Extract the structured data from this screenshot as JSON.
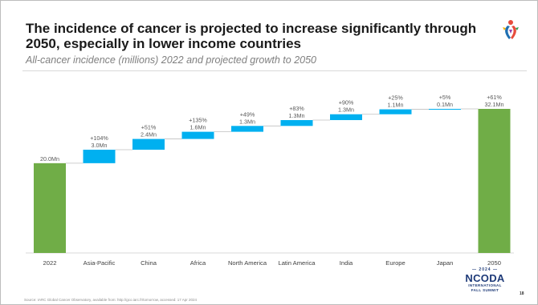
{
  "slide": {
    "title": "The incidence of cancer is projected to increase significantly through 2050, especially in lower income countries",
    "subtitle": "All-cancer incidence (millions) 2022 and projected growth to 2050",
    "source": "Source: IARC Global Cancer Observatory, available from: http://gco.iarc.fr/tomorrow, accessed: 17 Apr 2024",
    "page_number": "18",
    "footer_logo": {
      "year": "— 2024 —",
      "name": "NCODA",
      "line1": "INTERNATIONAL",
      "line2": "FALL SUMMIT"
    },
    "logo_icon": "ribbon-logo-icon"
  },
  "colors": {
    "total_bar": "#70ad47",
    "increase_bar": "#00b0f0",
    "connector": "#bfbfbf",
    "label_text": "#595959",
    "axis": "#d9d9d9"
  },
  "chart_data": {
    "type": "bar",
    "subtype": "waterfall",
    "categories": [
      "2022",
      "Asia-Pacific",
      "China",
      "Africa",
      "North America",
      "Latin America",
      "India",
      "Europe",
      "Japan",
      "2050"
    ],
    "values": [
      20.0,
      3.0,
      2.4,
      1.6,
      1.3,
      1.3,
      1.3,
      1.1,
      0.1,
      32.1
    ],
    "kinds": [
      "total",
      "increase",
      "increase",
      "increase",
      "increase",
      "increase",
      "increase",
      "increase",
      "increase",
      "total"
    ],
    "value_labels": [
      "20.0Mn",
      "3.0Mn",
      "2.4Mn",
      "1.6Mn",
      "1.3Mn",
      "1.3Mn",
      "1.3Mn",
      "1.1Mn",
      "0.1Mn",
      "32.1Mn"
    ],
    "growth_labels": [
      "",
      "+104%",
      "+51%",
      "+135%",
      "+49%",
      "+83%",
      "+90%",
      "+25%",
      "+5%",
      "+61%"
    ],
    "ylim": [
      0,
      32.1
    ],
    "grid": false,
    "legend": "none"
  }
}
